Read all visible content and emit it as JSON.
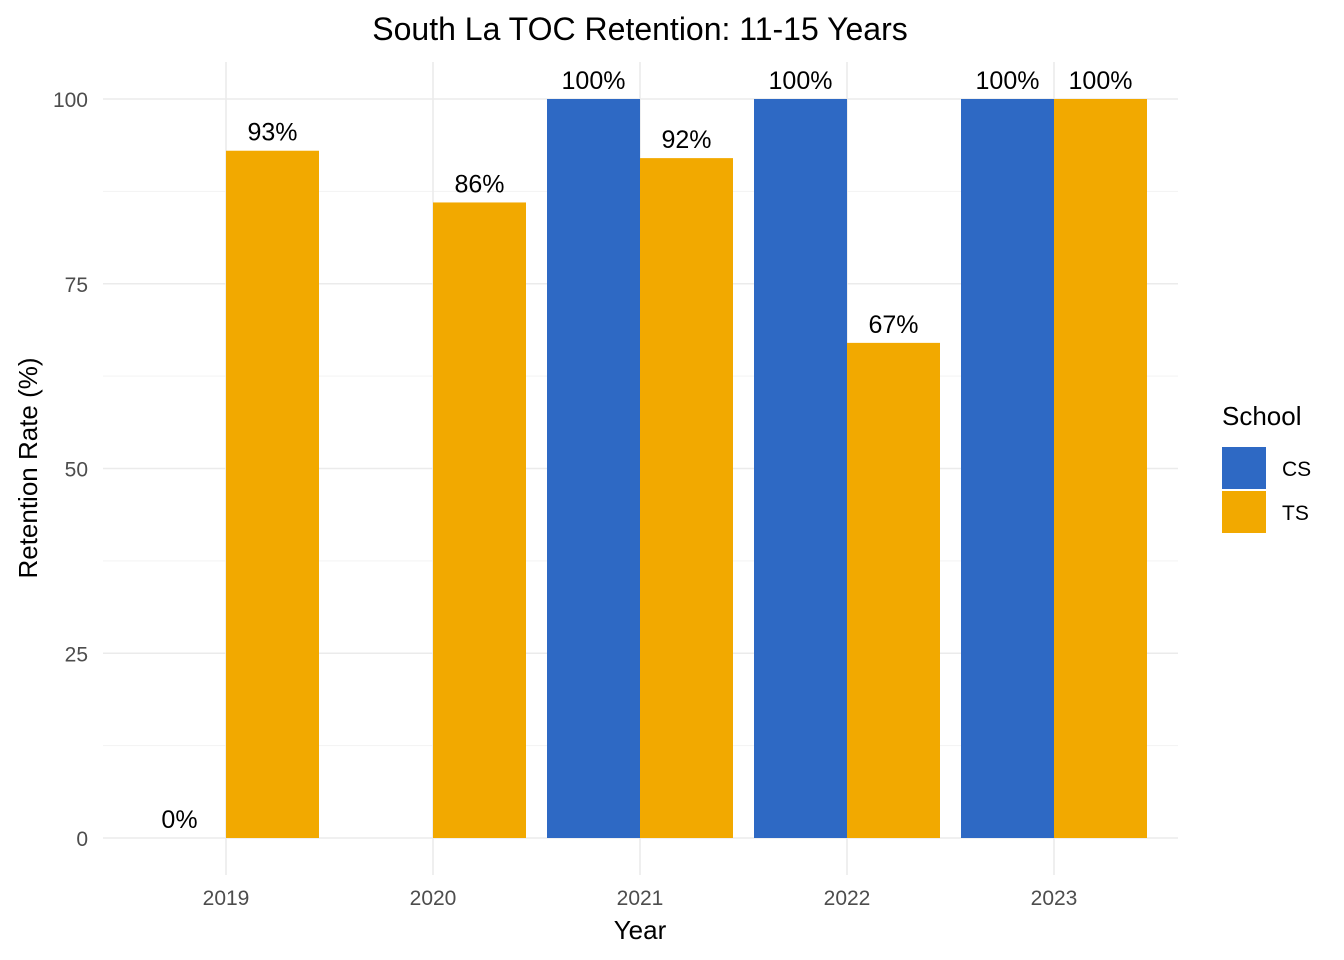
{
  "chart_data": {
    "type": "bar",
    "title": "South La TOC Retention: 11-15 Years",
    "xlabel": "Year",
    "ylabel": "Retention Rate (%)",
    "categories": [
      "2019",
      "2020",
      "2021",
      "2022",
      "2023"
    ],
    "ylim": [
      0,
      100
    ],
    "yticks": [
      "0",
      "25",
      "50",
      "75",
      "100"
    ],
    "legend_title": "School",
    "legend_position": "right",
    "grid": true,
    "series": [
      {
        "name": "CS",
        "color": "#2E69C4",
        "values": [
          0,
          null,
          100,
          100,
          100
        ],
        "labels": [
          "0%",
          null,
          "100%",
          "100%",
          "100%"
        ]
      },
      {
        "name": "TS",
        "color": "#F2A900",
        "values": [
          93,
          86,
          92,
          67,
          100
        ],
        "labels": [
          "93%",
          "86%",
          "92%",
          "67%",
          "100%"
        ]
      }
    ]
  }
}
